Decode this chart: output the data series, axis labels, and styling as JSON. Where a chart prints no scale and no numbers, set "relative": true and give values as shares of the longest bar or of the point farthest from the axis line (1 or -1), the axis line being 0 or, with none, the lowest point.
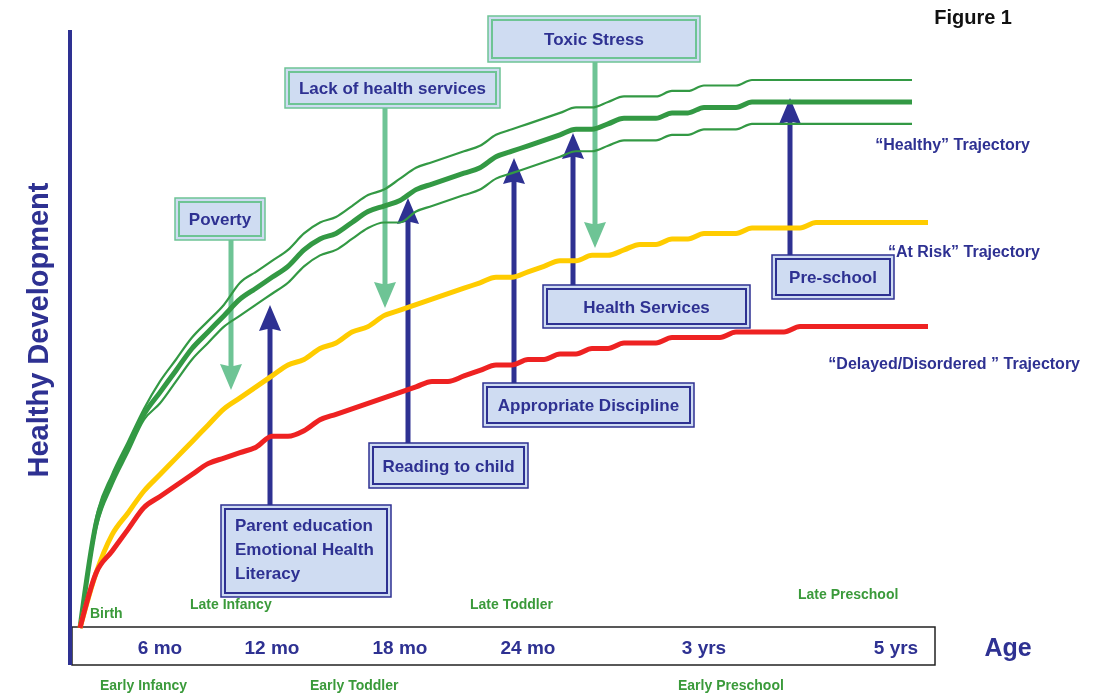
{
  "chart_data": {
    "type": "line",
    "relative": true,
    "title": "Figure 1",
    "xlabel": "Age",
    "ylabel": "Healthy Development",
    "categories": [
      null,
      null,
      null,
      null,
      null,
      "6 mo",
      null,
      null,
      null,
      null,
      null,
      null,
      "12 mo",
      null,
      null,
      null,
      null,
      null,
      null,
      null,
      "18 mo",
      null,
      null,
      null,
      null,
      null,
      null,
      null,
      "24 mo",
      null,
      null,
      null,
      null,
      null,
      null,
      null,
      null,
      null,
      null,
      "3 yrs",
      null,
      null,
      null,
      null,
      null,
      null,
      null,
      null,
      null,
      null,
      null,
      "5 yrs",
      null,
      null
    ],
    "series": [
      {
        "color": "#339944",
        "values": [
          0,
          0.2,
          0.28,
          0.34,
          0.4,
          0.45,
          0.49,
          0.53,
          0.56,
          0.59,
          0.63,
          0.65,
          0.67,
          0.69,
          0.72,
          0.74,
          0.75,
          0.77,
          0.79,
          0.8,
          0.82,
          0.84,
          0.85,
          0.86,
          0.87,
          0.88,
          0.9,
          0.91,
          0.92,
          0.93,
          0.94,
          0.95,
          0.95,
          0.96,
          0.97,
          0.97,
          0.97,
          0.98,
          0.98,
          0.99,
          0.99,
          0.99,
          1,
          1,
          1,
          1,
          1,
          1,
          1,
          1,
          1,
          1,
          1,
          null
        ]
      },
      {
        "name": "“Healthy” Trajectory",
        "color": "#339944",
        "values": [
          0,
          0.19,
          0.27,
          0.33,
          0.39,
          0.43,
          0.47,
          0.51,
          0.54,
          0.57,
          0.6,
          0.62,
          0.64,
          0.66,
          0.69,
          0.71,
          0.72,
          0.74,
          0.76,
          0.77,
          0.78,
          0.8,
          0.81,
          0.82,
          0.83,
          0.84,
          0.86,
          0.87,
          0.88,
          0.89,
          0.9,
          0.91,
          0.91,
          0.92,
          0.93,
          0.93,
          0.93,
          0.94,
          0.94,
          0.95,
          0.95,
          0.95,
          0.96,
          0.96,
          0.96,
          0.96,
          0.96,
          0.96,
          0.96,
          0.96,
          0.96,
          0.96,
          0.96,
          null
        ]
      },
      {
        "color": "#339944",
        "values": [
          0,
          0.18,
          0.26,
          0.32,
          0.38,
          0.41,
          0.45,
          0.49,
          0.52,
          0.55,
          0.57,
          0.59,
          0.61,
          0.63,
          0.66,
          0.68,
          0.69,
          0.71,
          0.73,
          0.74,
          0.74,
          0.76,
          0.77,
          0.78,
          0.79,
          0.8,
          0.82,
          0.83,
          0.84,
          0.85,
          0.86,
          0.87,
          0.87,
          0.88,
          0.89,
          0.89,
          0.89,
          0.9,
          0.9,
          0.91,
          0.91,
          0.91,
          0.92,
          0.92,
          0.92,
          0.92,
          0.92,
          0.92,
          0.92,
          0.92,
          0.92,
          0.92,
          0.92,
          null
        ]
      },
      {
        "name": "“At Risk” Trajectory",
        "color": "#ffcc00",
        "values": [
          0,
          0.1,
          0.17,
          0.21,
          0.25,
          0.28,
          0.31,
          0.34,
          0.37,
          0.4,
          0.42,
          0.44,
          0.46,
          0.48,
          0.49,
          0.51,
          0.52,
          0.54,
          0.55,
          0.57,
          0.58,
          0.59,
          0.6,
          0.61,
          0.62,
          0.63,
          0.64,
          0.64,
          0.65,
          0.66,
          0.67,
          0.67,
          0.68,
          0.68,
          0.69,
          0.7,
          0.7,
          0.71,
          0.71,
          0.72,
          0.72,
          0.72,
          0.73,
          0.73,
          0.73,
          0.73,
          0.74,
          0.74,
          0.74,
          0.74,
          0.74,
          0.74,
          0.74,
          0.74
        ]
      },
      {
        "name": "“Delayed/Disordered ” Trajectory",
        "color": "#ee2222",
        "values": [
          0,
          0.1,
          0.14,
          0.18,
          0.22,
          0.24,
          0.26,
          0.28,
          0.3,
          0.31,
          0.32,
          0.33,
          0.35,
          0.35,
          0.36,
          0.38,
          0.39,
          0.4,
          0.41,
          0.42,
          0.43,
          0.44,
          0.45,
          0.45,
          0.46,
          0.47,
          0.48,
          0.48,
          0.49,
          0.49,
          0.5,
          0.5,
          0.51,
          0.51,
          0.52,
          0.52,
          0.52,
          0.53,
          0.53,
          0.53,
          0.53,
          0.54,
          0.54,
          0.54,
          0.54,
          0.55,
          0.55,
          0.55,
          0.55,
          0.55,
          0.55,
          0.55,
          0.55,
          0.55
        ]
      }
    ],
    "annotations": [
      "Birth",
      "Late Infancy",
      "Late Toddler",
      "Late Preschool",
      "Early Infancy",
      "Early Toddler",
      "Early Preschool",
      "Poverty",
      "Lack of health services",
      "Toxic Stress",
      "Parent education\nEmotional Health\nLiteracy",
      "Reading to child",
      "Appropriate Discipline",
      "Health Services",
      "Pre-school"
    ]
  }
}
